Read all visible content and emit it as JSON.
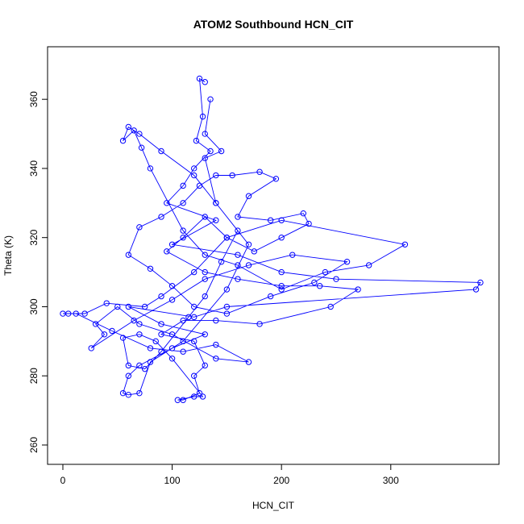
{
  "chart_data": {
    "type": "line",
    "title": "ATOM2 Southbound HCN_CIT",
    "x_label": "HCN_CIT",
    "y_label": "Theta (K)",
    "color": "blue",
    "markers": "circle",
    "x": [
      130,
      125,
      128,
      122,
      135,
      120,
      110,
      95,
      140,
      100,
      160,
      200,
      250,
      382,
      378,
      150,
      120,
      60,
      90,
      130,
      100,
      70,
      60,
      55,
      60,
      70,
      80,
      110,
      150,
      170,
      140,
      120,
      90,
      70,
      60,
      55,
      65,
      72,
      80,
      110,
      130,
      160,
      200,
      240,
      280,
      313,
      200,
      150,
      120,
      90,
      75,
      40,
      20,
      5,
      0,
      12,
      45,
      80,
      110,
      140,
      170,
      140,
      100,
      70,
      50,
      30,
      38,
      26,
      65,
      100,
      130,
      170,
      210,
      260,
      230,
      190,
      150,
      120,
      100,
      80,
      60,
      70,
      90,
      110,
      125,
      140,
      155,
      180,
      195,
      170,
      160,
      190,
      220,
      225,
      200,
      175,
      150,
      130,
      110,
      95,
      130,
      160,
      200,
      235,
      270,
      245,
      180,
      140,
      110,
      90,
      120,
      130,
      120,
      125,
      110,
      105,
      120,
      128,
      100,
      85,
      70,
      55,
      60,
      75,
      90,
      115,
      130,
      145,
      160,
      140,
      130,
      145,
      130,
      135
    ],
    "y": [
      365,
      366,
      355,
      348,
      345,
      340,
      335,
      330,
      325,
      318,
      315,
      310,
      308,
      307,
      305,
      300,
      297,
      300,
      295,
      292,
      288,
      283,
      280,
      275,
      274.5,
      275,
      284,
      290,
      305,
      318,
      330,
      338,
      345,
      350,
      352,
      348,
      351,
      346,
      340,
      322,
      315,
      312,
      305,
      310,
      312,
      318,
      325,
      320,
      310,
      303,
      300,
      301,
      298,
      298,
      298,
      298,
      293,
      288,
      287,
      289,
      284,
      285,
      292,
      295,
      300,
      295,
      292,
      288,
      296,
      302,
      308,
      312,
      315,
      313,
      307,
      303,
      298,
      300,
      306,
      311,
      315,
      323,
      326,
      330,
      335,
      338,
      338,
      339,
      337,
      332,
      326,
      325,
      327,
      324,
      320,
      316,
      320,
      326,
      320,
      316,
      310,
      308,
      306,
      306,
      305,
      300,
      295,
      296,
      296,
      292,
      290,
      283,
      280,
      275,
      273,
      273,
      274,
      274,
      285,
      290,
      292,
      291,
      283,
      282,
      287,
      297,
      303,
      313,
      322,
      330,
      343,
      345,
      350,
      360
    ],
    "xlim": [
      -14,
      399
    ],
    "ylim": [
      254.4,
      375.2
    ],
    "xticks": [
      0,
      100,
      200,
      300
    ],
    "yticks": [
      260,
      280,
      300,
      320,
      340,
      360
    ]
  }
}
